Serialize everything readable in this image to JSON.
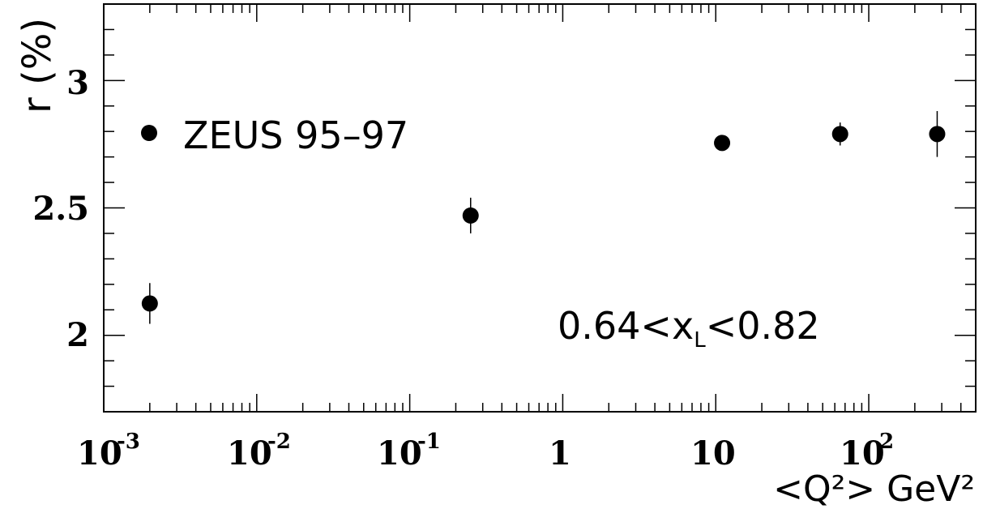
{
  "chart_data": {
    "type": "scatter",
    "x_scale": "log",
    "xlim": [
      0.001,
      500
    ],
    "ylim": [
      1.7,
      3.3
    ],
    "grid": false,
    "legend_position": "top-left",
    "ylabel": "r (%)",
    "xlabel": "<Q²> GeV²",
    "x_tick_labels": [
      "10",
      "10",
      "10",
      "1",
      "10",
      "10"
    ],
    "x_tick_exponents": [
      "-3",
      "-2",
      "-1",
      "",
      "",
      "2"
    ],
    "y_tick_labels": [
      "2",
      "2.5",
      "3"
    ],
    "annotation": "0.64<x_L<0.82",
    "series": [
      {
        "name": "ZEUS 95–97",
        "x": [
          0.002,
          0.25,
          11,
          65,
          280
        ],
        "y": [
          2.125,
          2.47,
          2.755,
          2.79,
          2.79
        ],
        "y_err": [
          0.08,
          0.07,
          0.025,
          0.045,
          0.09
        ]
      }
    ]
  }
}
